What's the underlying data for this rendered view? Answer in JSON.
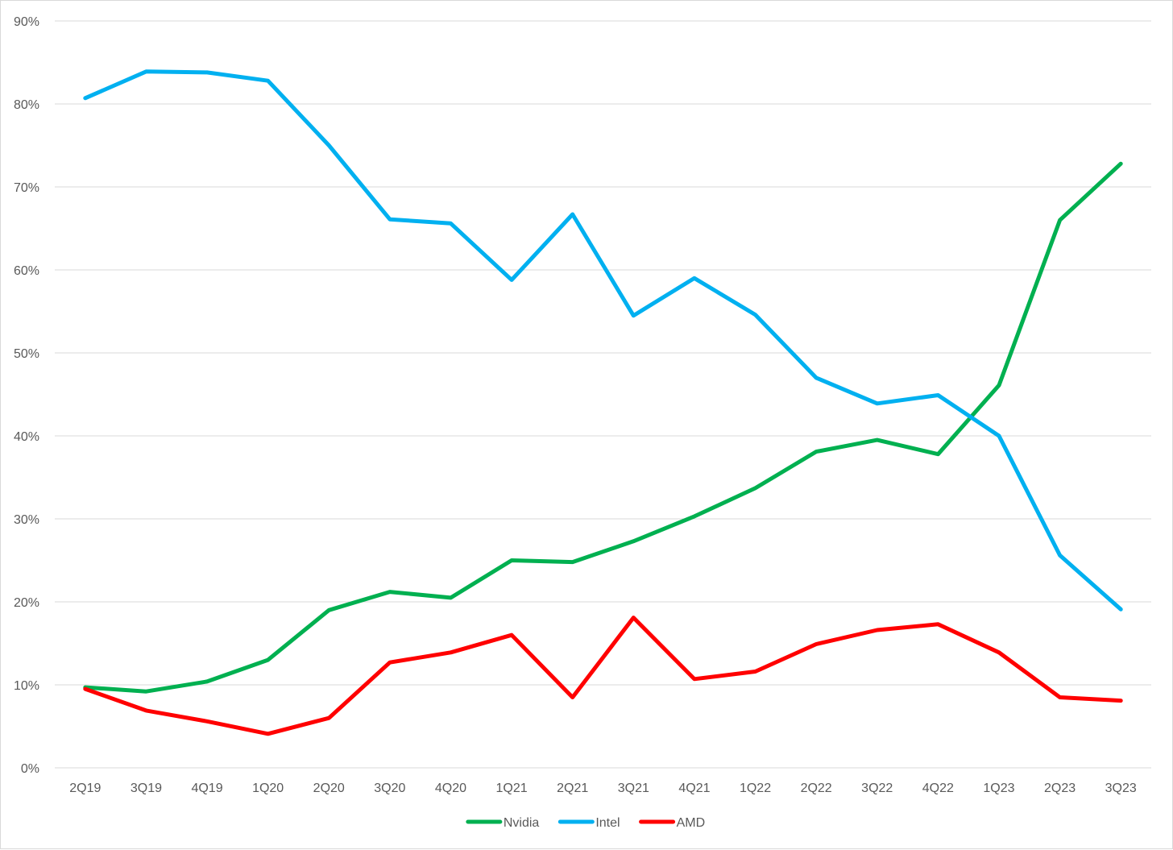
{
  "chart_data": {
    "type": "line",
    "categories": [
      "2Q19",
      "3Q19",
      "4Q19",
      "1Q20",
      "2Q20",
      "3Q20",
      "4Q20",
      "1Q21",
      "2Q21",
      "3Q21",
      "4Q21",
      "1Q22",
      "2Q22",
      "3Q22",
      "4Q22",
      "1Q23",
      "2Q23",
      "3Q23"
    ],
    "series": [
      {
        "name": "Nvidia",
        "color": "#00b050",
        "values": [
          9.7,
          9.2,
          10.4,
          13.0,
          19.0,
          21.2,
          20.5,
          25.0,
          24.8,
          27.3,
          30.3,
          33.7,
          38.1,
          39.5,
          37.8,
          46.1,
          66.0,
          72.8
        ]
      },
      {
        "name": "Intel",
        "color": "#00b0f0",
        "values": [
          80.7,
          83.9,
          83.8,
          82.8,
          75.0,
          66.1,
          65.6,
          58.8,
          66.7,
          54.5,
          59.0,
          54.6,
          47.0,
          43.9,
          44.9,
          40.0,
          25.6,
          19.1
        ]
      },
      {
        "name": "AMD",
        "color": "#ff0000",
        "values": [
          9.5,
          6.9,
          5.6,
          4.1,
          6.0,
          12.7,
          13.9,
          16.0,
          8.5,
          18.1,
          10.7,
          11.6,
          14.9,
          16.6,
          17.3,
          13.9,
          8.5,
          8.1
        ]
      }
    ],
    "ylim": [
      0,
      90
    ],
    "yticks": [
      0,
      10,
      20,
      30,
      40,
      50,
      60,
      70,
      80,
      90
    ],
    "ytick_labels": [
      "0%",
      "10%",
      "20%",
      "30%",
      "40%",
      "50%",
      "60%",
      "70%",
      "80%",
      "90%"
    ],
    "title": "",
    "xlabel": "",
    "ylabel": "",
    "grid": true,
    "legend_position": "bottom-center"
  }
}
